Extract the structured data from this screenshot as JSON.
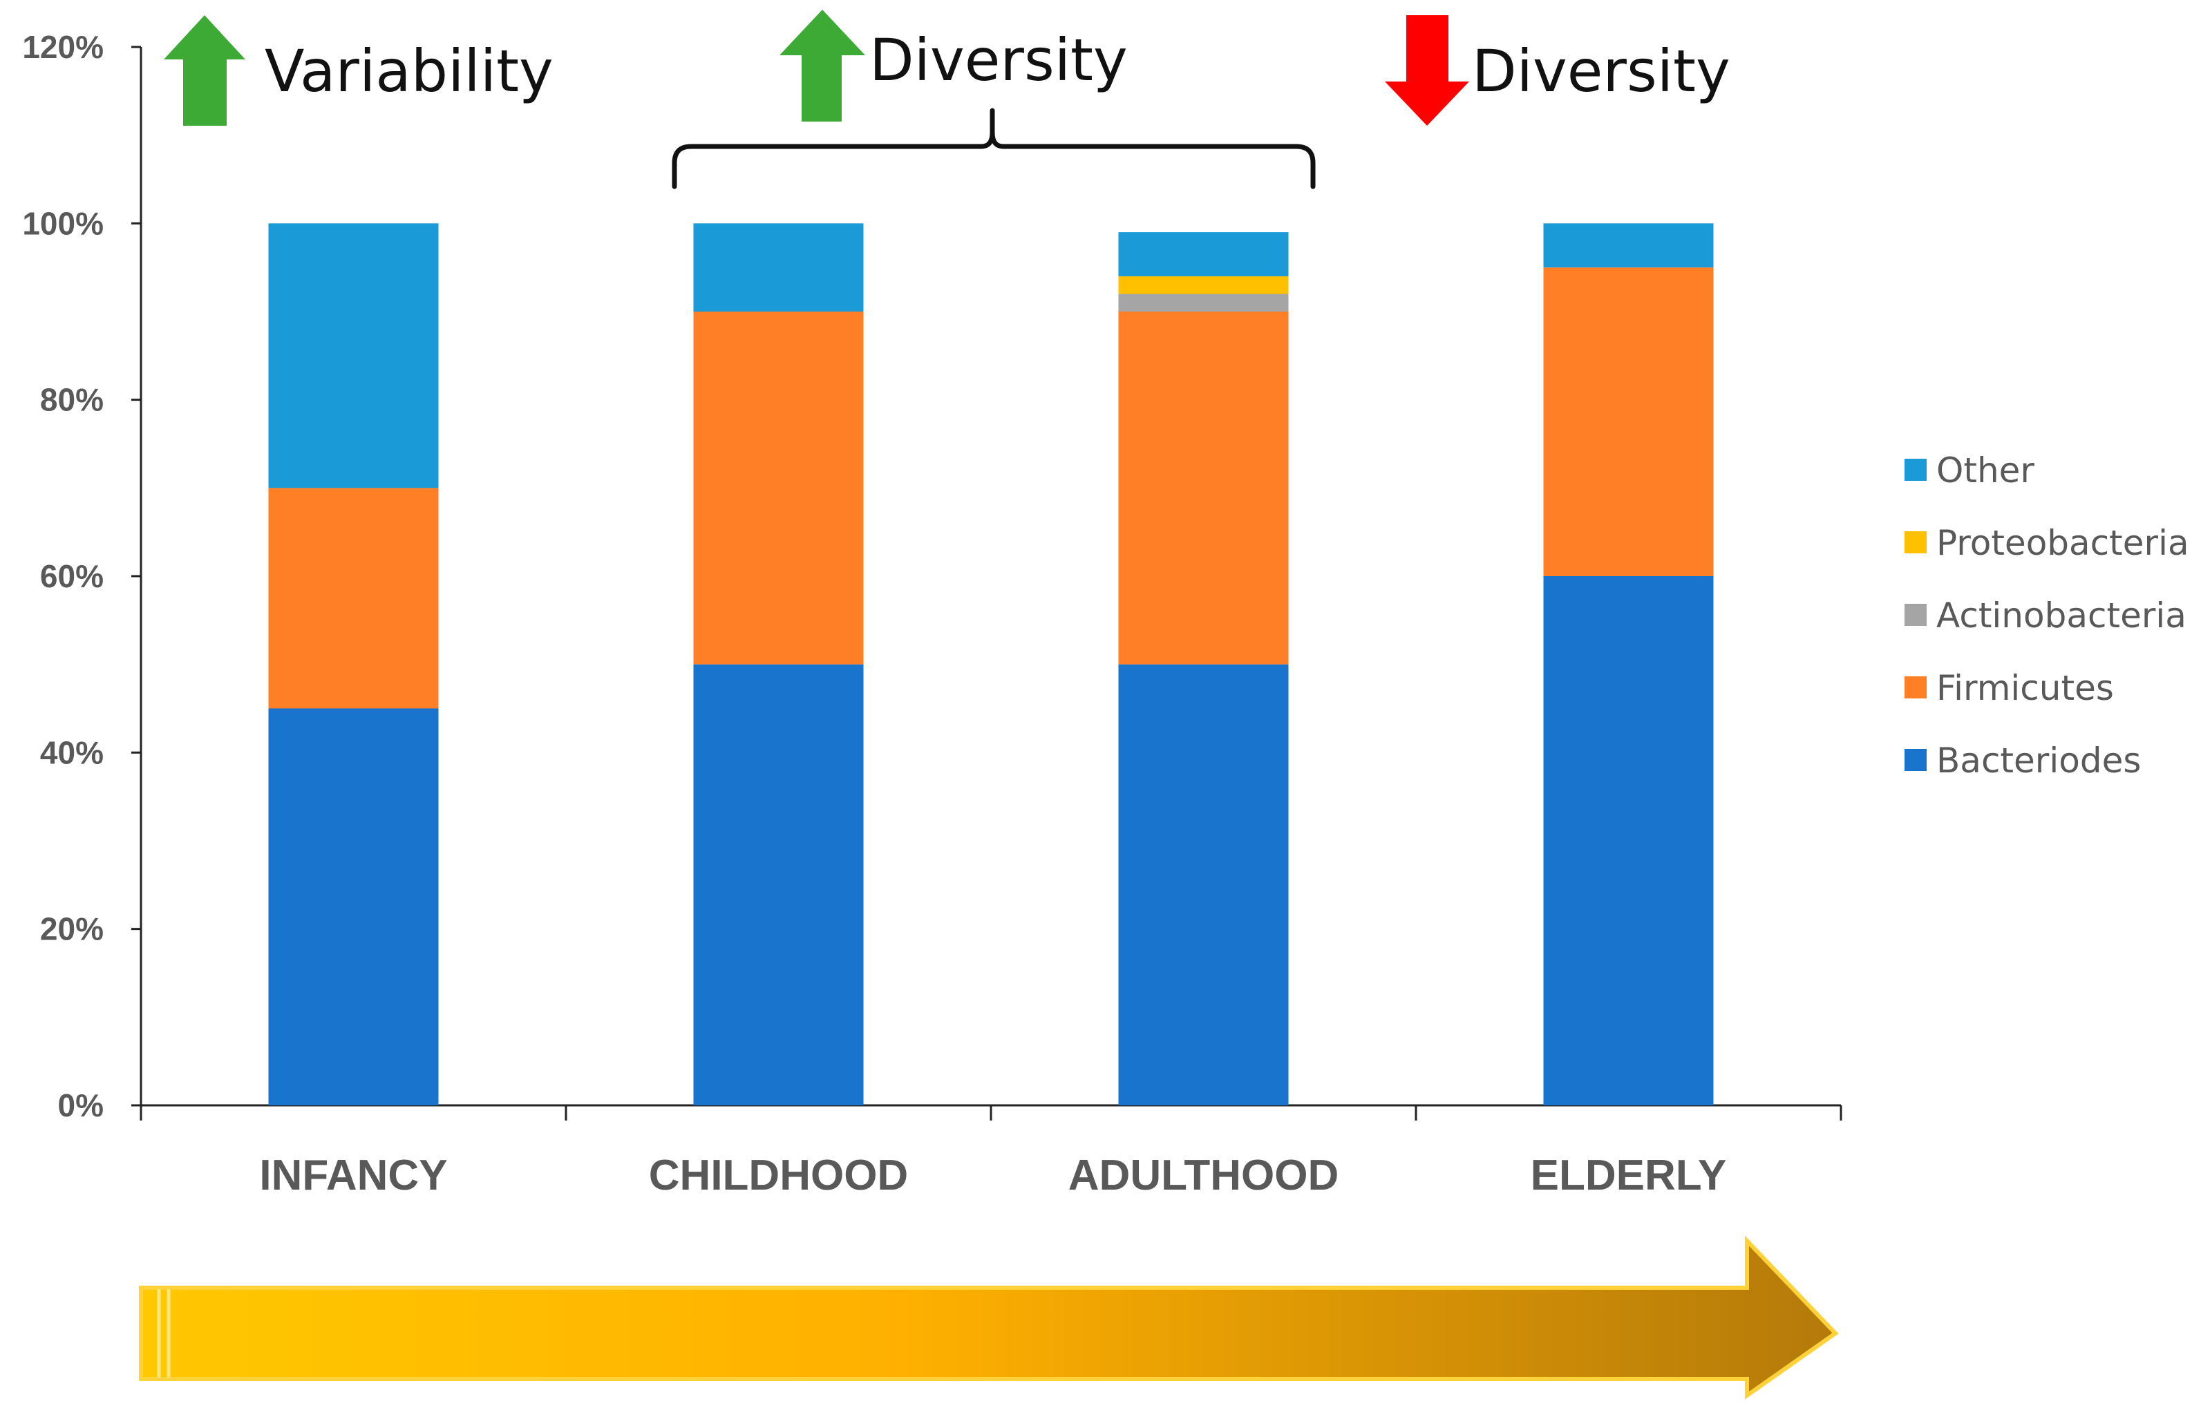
{
  "chart_data": {
    "type": "bar",
    "stacked": true,
    "title": "",
    "xlabel": "",
    "ylabel": "",
    "ylim": [
      0,
      120
    ],
    "y_ticks": [
      0,
      20,
      40,
      60,
      80,
      100,
      120
    ],
    "y_tick_labels": [
      "0%",
      "20%",
      "40%",
      "60%",
      "80%",
      "100%",
      "120%"
    ],
    "categories": [
      "INFANCY",
      "CHILDHOOD",
      "ADULTHOOD",
      "ELDERLY"
    ],
    "series": [
      {
        "name": "Bacteriodes",
        "color": "#1874CD",
        "values": [
          45,
          50,
          50,
          60
        ]
      },
      {
        "name": "Firmicutes",
        "color": "#FF7F27",
        "values": [
          25,
          40,
          40,
          35
        ]
      },
      {
        "name": "Actinobacteria",
        "color": "#A5A5A5",
        "values": [
          0,
          0,
          2,
          0
        ]
      },
      {
        "name": "Proteobacteria",
        "color": "#FFC000",
        "values": [
          0,
          0,
          2,
          0
        ]
      },
      {
        "name": "Other",
        "color": "#1A9BD7",
        "values": [
          30,
          10,
          5,
          5
        ]
      }
    ],
    "legend_position": "right",
    "grid": false,
    "annotations": [
      {
        "text": "Variability",
        "arrow": "up",
        "color": "#3DAA35"
      },
      {
        "text": "Diversity",
        "arrow": "up",
        "color": "#3DAA35",
        "spans": [
          "CHILDHOOD",
          "ADULTHOOD"
        ]
      },
      {
        "text": "Diversity",
        "arrow": "down",
        "color": "#FF0000"
      }
    ],
    "timeline_arrow": {
      "direction": "right",
      "color_start": "#FFC800",
      "color_end": "#B47A0A"
    }
  }
}
